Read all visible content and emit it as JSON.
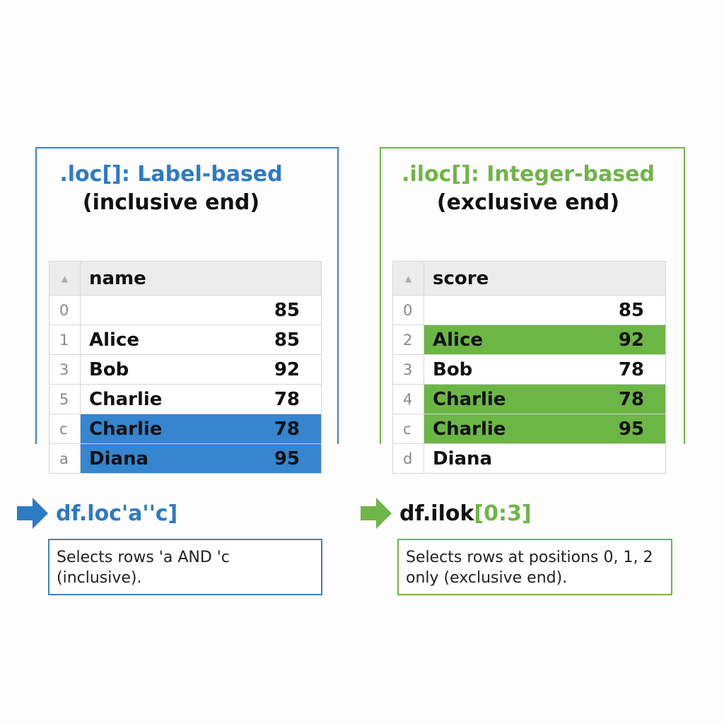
{
  "left_panel": {
    "title_line1": ".loc[]: Label-based",
    "title_line2": "(inclusive end)",
    "header_label": "name",
    "sort_icon": "▲",
    "rows": [
      {
        "index": "0",
        "name": "",
        "value": "85",
        "highlight": false
      },
      {
        "index": "1",
        "name": "Alice",
        "value": "85",
        "highlight": false
      },
      {
        "index": "3",
        "name": "Bob",
        "value": "92",
        "highlight": false
      },
      {
        "index": "5",
        "name": "Charlie",
        "value": "78",
        "highlight": false
      },
      {
        "index": "c",
        "name": "Charlie",
        "value": "78",
        "highlight": true
      },
      {
        "index": "a",
        "name": "Diana",
        "value": "95",
        "highlight": true
      }
    ],
    "code": "df.loc'a''c]",
    "note": "Selects rows 'a AND 'c (inclusive).",
    "accent_color": "#3585cf"
  },
  "right_panel": {
    "title_line1": ".iloc[]: Integer-based",
    "title_line2": "(exclusive end)",
    "header_label": "score",
    "sort_icon": "▲",
    "rows": [
      {
        "index": "0",
        "name": "",
        "value": "85",
        "highlight": false
      },
      {
        "index": "2",
        "name": "Alice",
        "value": "92",
        "highlight": true
      },
      {
        "index": "3",
        "name": "Bob",
        "value": "78",
        "highlight": false
      },
      {
        "index": "4",
        "name": "Charlie",
        "value": "78",
        "highlight": true
      },
      {
        "index": "c",
        "name": "Charlie",
        "value": "95",
        "highlight": true
      },
      {
        "index": "d",
        "name": "Diana",
        "value": "",
        "highlight": false
      }
    ],
    "code_prefix": "df.ilok",
    "code_bracket": "[0:3]",
    "note": "Selects rows at positions 0, 1, 2 only (exclusive end).",
    "accent_color": "#6cb646"
  }
}
